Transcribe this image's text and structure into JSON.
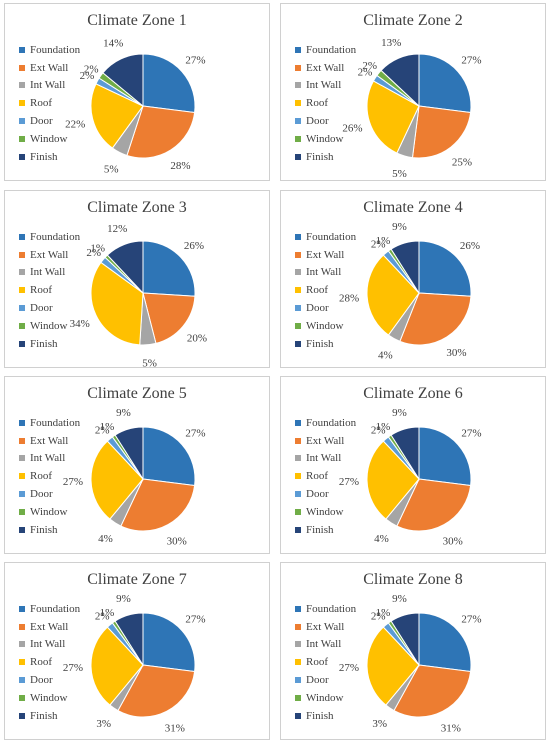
{
  "categories": [
    "Foundation",
    "Ext Wall",
    "Int Wall",
    "Roof",
    "Door",
    "Window",
    "Finish"
  ],
  "colors": [
    "#2E75B6",
    "#ED7D31",
    "#A5A5A5",
    "#FFC000",
    "#5B9BD5",
    "#70AD47",
    "#264478"
  ],
  "chart_data": [
    {
      "type": "pie",
      "title": "Climate Zone 1",
      "categories": [
        "Foundation",
        "Ext Wall",
        "Int Wall",
        "Roof",
        "Door",
        "Window",
        "Finish"
      ],
      "values": [
        27,
        28,
        5,
        22,
        2,
        2,
        14
      ],
      "labels": [
        "27%",
        "28%",
        "5%",
        "22%",
        "2%",
        "2%",
        "14%"
      ]
    },
    {
      "type": "pie",
      "title": "Climate Zone 2",
      "categories": [
        "Foundation",
        "Ext Wall",
        "Int Wall",
        "Roof",
        "Door",
        "Window",
        "Finish"
      ],
      "values": [
        27,
        25,
        5,
        26,
        2,
        2,
        13
      ],
      "labels": [
        "27%",
        "25%",
        "5%",
        "26%",
        "2%",
        "2%",
        "13%"
      ]
    },
    {
      "type": "pie",
      "title": "Climate Zone 3",
      "categories": [
        "Foundation",
        "Ext Wall",
        "Int Wall",
        "Roof",
        "Door",
        "Window",
        "Finish"
      ],
      "values": [
        26,
        20,
        5,
        34,
        2,
        1,
        12
      ],
      "labels": [
        "26%",
        "20%",
        "5%",
        "34%",
        "2%",
        "1%",
        "12%"
      ]
    },
    {
      "type": "pie",
      "title": "Climate Zone 4",
      "categories": [
        "Foundation",
        "Ext Wall",
        "Int Wall",
        "Roof",
        "Door",
        "Window",
        "Finish"
      ],
      "values": [
        26,
        30,
        4,
        28,
        2,
        1,
        9
      ],
      "labels": [
        "26%",
        "30%",
        "4%",
        "28%",
        "2%",
        "1%",
        "9%"
      ]
    },
    {
      "type": "pie",
      "title": "Climate Zone 5",
      "categories": [
        "Foundation",
        "Ext Wall",
        "Int Wall",
        "Roof",
        "Door",
        "Window",
        "Finish"
      ],
      "values": [
        27,
        30,
        4,
        27,
        2,
        1,
        9
      ],
      "labels": [
        "27%",
        "30%",
        "4%",
        "27%",
        "2%",
        "1%",
        "9%"
      ]
    },
    {
      "type": "pie",
      "title": "Climate Zone 6",
      "categories": [
        "Foundation",
        "Ext Wall",
        "Int Wall",
        "Roof",
        "Door",
        "Window",
        "Finish"
      ],
      "values": [
        27,
        30,
        4,
        27,
        2,
        1,
        9
      ],
      "labels": [
        "27%",
        "30%",
        "4%",
        "27%",
        "2%",
        "1%",
        "9%"
      ]
    },
    {
      "type": "pie",
      "title": "Climate Zone 7",
      "categories": [
        "Foundation",
        "Ext Wall",
        "Int Wall",
        "Roof",
        "Door",
        "Window",
        "Finish"
      ],
      "values": [
        27,
        31,
        3,
        27,
        2,
        1,
        9
      ],
      "labels": [
        "27%",
        "31%",
        "3%",
        "27%",
        "2%",
        "1%",
        "9%"
      ]
    },
    {
      "type": "pie",
      "title": "Climate Zone 8",
      "categories": [
        "Foundation",
        "Ext Wall",
        "Int Wall",
        "Roof",
        "Door",
        "Window",
        "Finish"
      ],
      "values": [
        27,
        31,
        3,
        27,
        2,
        1,
        9
      ],
      "labels": [
        "27%",
        "31%",
        "3%",
        "27%",
        "2%",
        "1%",
        "9%"
      ]
    }
  ]
}
